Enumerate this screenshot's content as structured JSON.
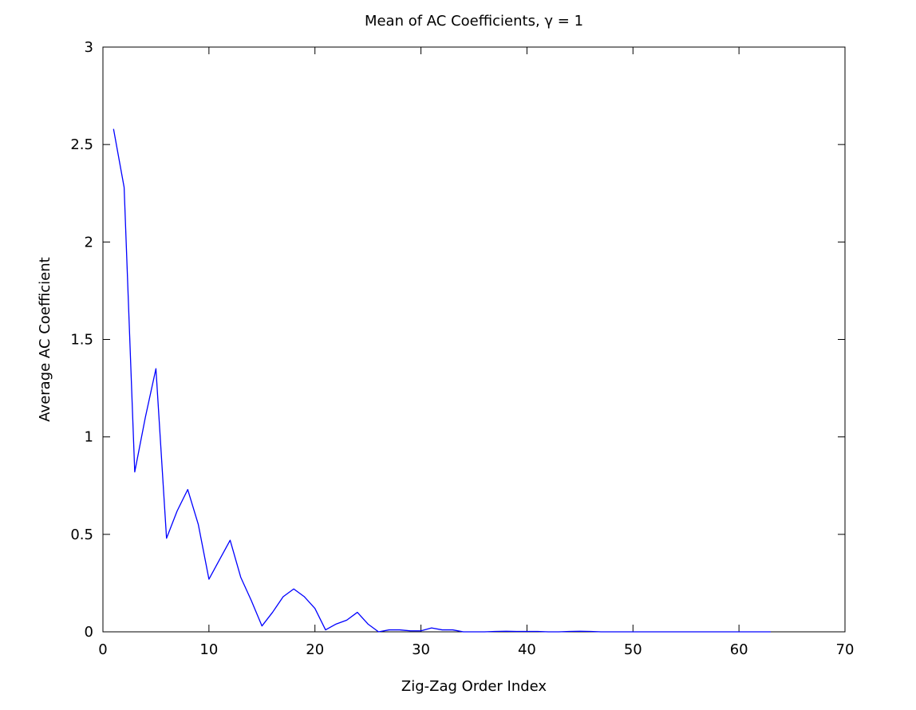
{
  "chart_data": {
    "type": "line",
    "title": "Mean of AC Coefficients, γ = 1",
    "xlabel": "Zig-Zag Order Index",
    "ylabel": "Average AC Coefficient",
    "xlim": [
      0,
      70
    ],
    "ylim": [
      0,
      3
    ],
    "x_ticks": [
      0,
      10,
      20,
      30,
      40,
      50,
      60,
      70
    ],
    "y_ticks": [
      0,
      0.5,
      1,
      1.5,
      2,
      2.5,
      3
    ],
    "x_tick_labels": [
      "0",
      "10",
      "20",
      "30",
      "40",
      "50",
      "60",
      "70"
    ],
    "y_tick_labels": [
      "0",
      "0.5",
      "1",
      "1.5",
      "2",
      "2.5",
      "3"
    ],
    "grid": false,
    "line_color": "#0000ff",
    "series": [
      {
        "x": [
          1,
          2,
          3,
          4,
          5,
          6,
          7,
          8,
          9,
          10,
          11,
          12,
          13,
          14,
          15,
          16,
          17,
          18,
          19,
          20,
          21,
          22,
          23,
          24,
          25,
          26,
          27,
          28,
          29,
          30,
          31,
          32,
          33,
          34,
          35,
          36,
          37,
          38,
          39,
          40,
          41,
          42,
          43,
          44,
          45,
          46,
          47,
          48,
          49,
          50,
          51,
          52,
          53,
          54,
          55,
          56,
          57,
          58,
          59,
          60,
          61,
          62,
          63
        ],
        "values": [
          2.58,
          2.28,
          0.82,
          1.1,
          1.35,
          0.48,
          0.62,
          0.73,
          0.55,
          0.27,
          0.37,
          0.47,
          0.28,
          0.16,
          0.03,
          0.1,
          0.18,
          0.22,
          0.18,
          0.12,
          0.01,
          0.04,
          0.06,
          0.1,
          0.04,
          0.0,
          0.01,
          0.01,
          0.005,
          0.005,
          0.02,
          0.01,
          0.01,
          0.0,
          0.0,
          0.0,
          0.002,
          0.003,
          0.002,
          0.002,
          0.002,
          0.0,
          0.0,
          0.002,
          0.003,
          0.002,
          0.0,
          0.0,
          0.0,
          0.0,
          0.0,
          0.0,
          0.0,
          0.0,
          0.0,
          0.0,
          0.0,
          0.0,
          0.0,
          0.0,
          0.0,
          0.0,
          0.0
        ]
      }
    ]
  }
}
